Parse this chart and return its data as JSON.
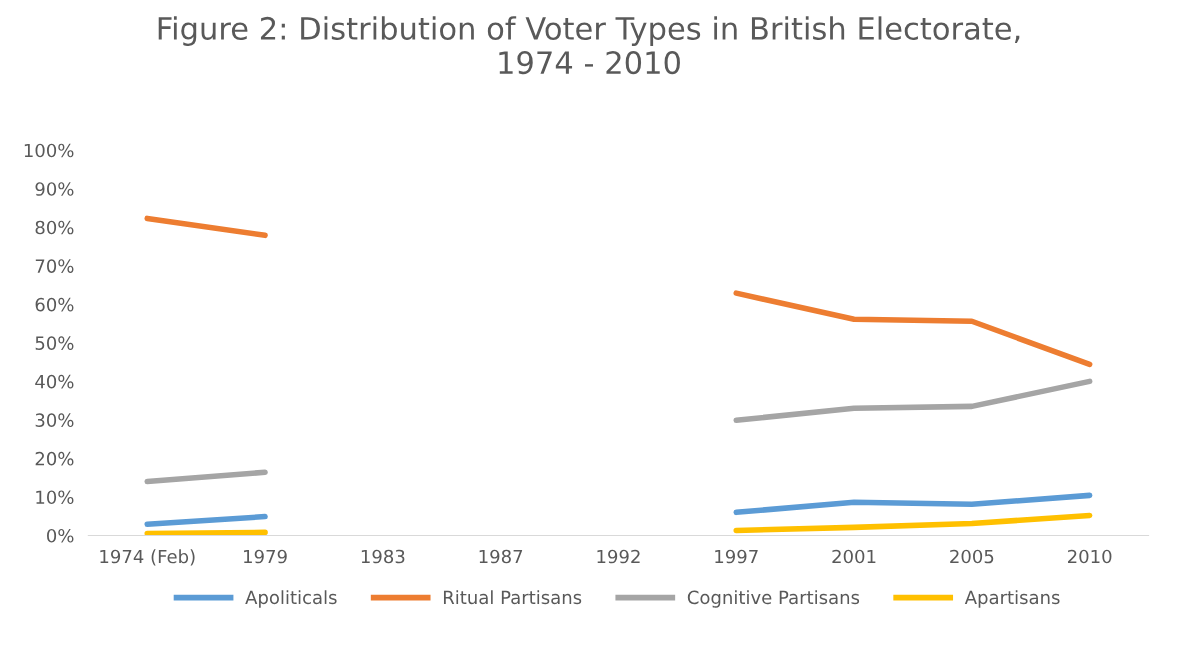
{
  "chart_data": {
    "type": "line",
    "title": "Figure 2: Distribution of Voter Types in British Electorate,\n1974 - 2010",
    "categories": [
      "1974 (Feb)",
      "1979",
      "1983",
      "1987",
      "1992",
      "1997",
      "2001",
      "2005",
      "2010"
    ],
    "series": [
      {
        "name": "Apoliticals",
        "color": "#5b9bd5",
        "values": [
          2.9,
          4.9,
          null,
          null,
          null,
          6.0,
          8.6,
          8.1,
          10.4
        ]
      },
      {
        "name": "Ritual Partisans",
        "color": "#ed7d31",
        "values": [
          82.3,
          77.9,
          null,
          null,
          null,
          62.9,
          56.1,
          55.6,
          44.4
        ]
      },
      {
        "name": "Cognitive Partisans",
        "color": "#a5a5a5",
        "values": [
          14.0,
          16.4,
          null,
          null,
          null,
          29.9,
          33.0,
          33.5,
          40.0
        ]
      },
      {
        "name": "Apartisans",
        "color": "#ffc000",
        "values": [
          0.5,
          0.8,
          null,
          null,
          null,
          1.3,
          2.1,
          3.1,
          5.2
        ]
      }
    ],
    "ylim": [
      0,
      100
    ],
    "yticks": [
      {
        "value": 0,
        "label": "0%"
      },
      {
        "value": 10,
        "label": "10%"
      },
      {
        "value": 20,
        "label": "20%"
      },
      {
        "value": 30,
        "label": "30%"
      },
      {
        "value": 40,
        "label": "40%"
      },
      {
        "value": 50,
        "label": "50%"
      },
      {
        "value": 60,
        "label": "60%"
      },
      {
        "value": 70,
        "label": "70%"
      },
      {
        "value": 80,
        "label": "80%"
      },
      {
        "value": 90,
        "label": "90%"
      },
      {
        "value": 100,
        "label": "100%"
      }
    ],
    "grid": false,
    "legend": "bottom",
    "marker": "none",
    "line_style": "solid"
  }
}
